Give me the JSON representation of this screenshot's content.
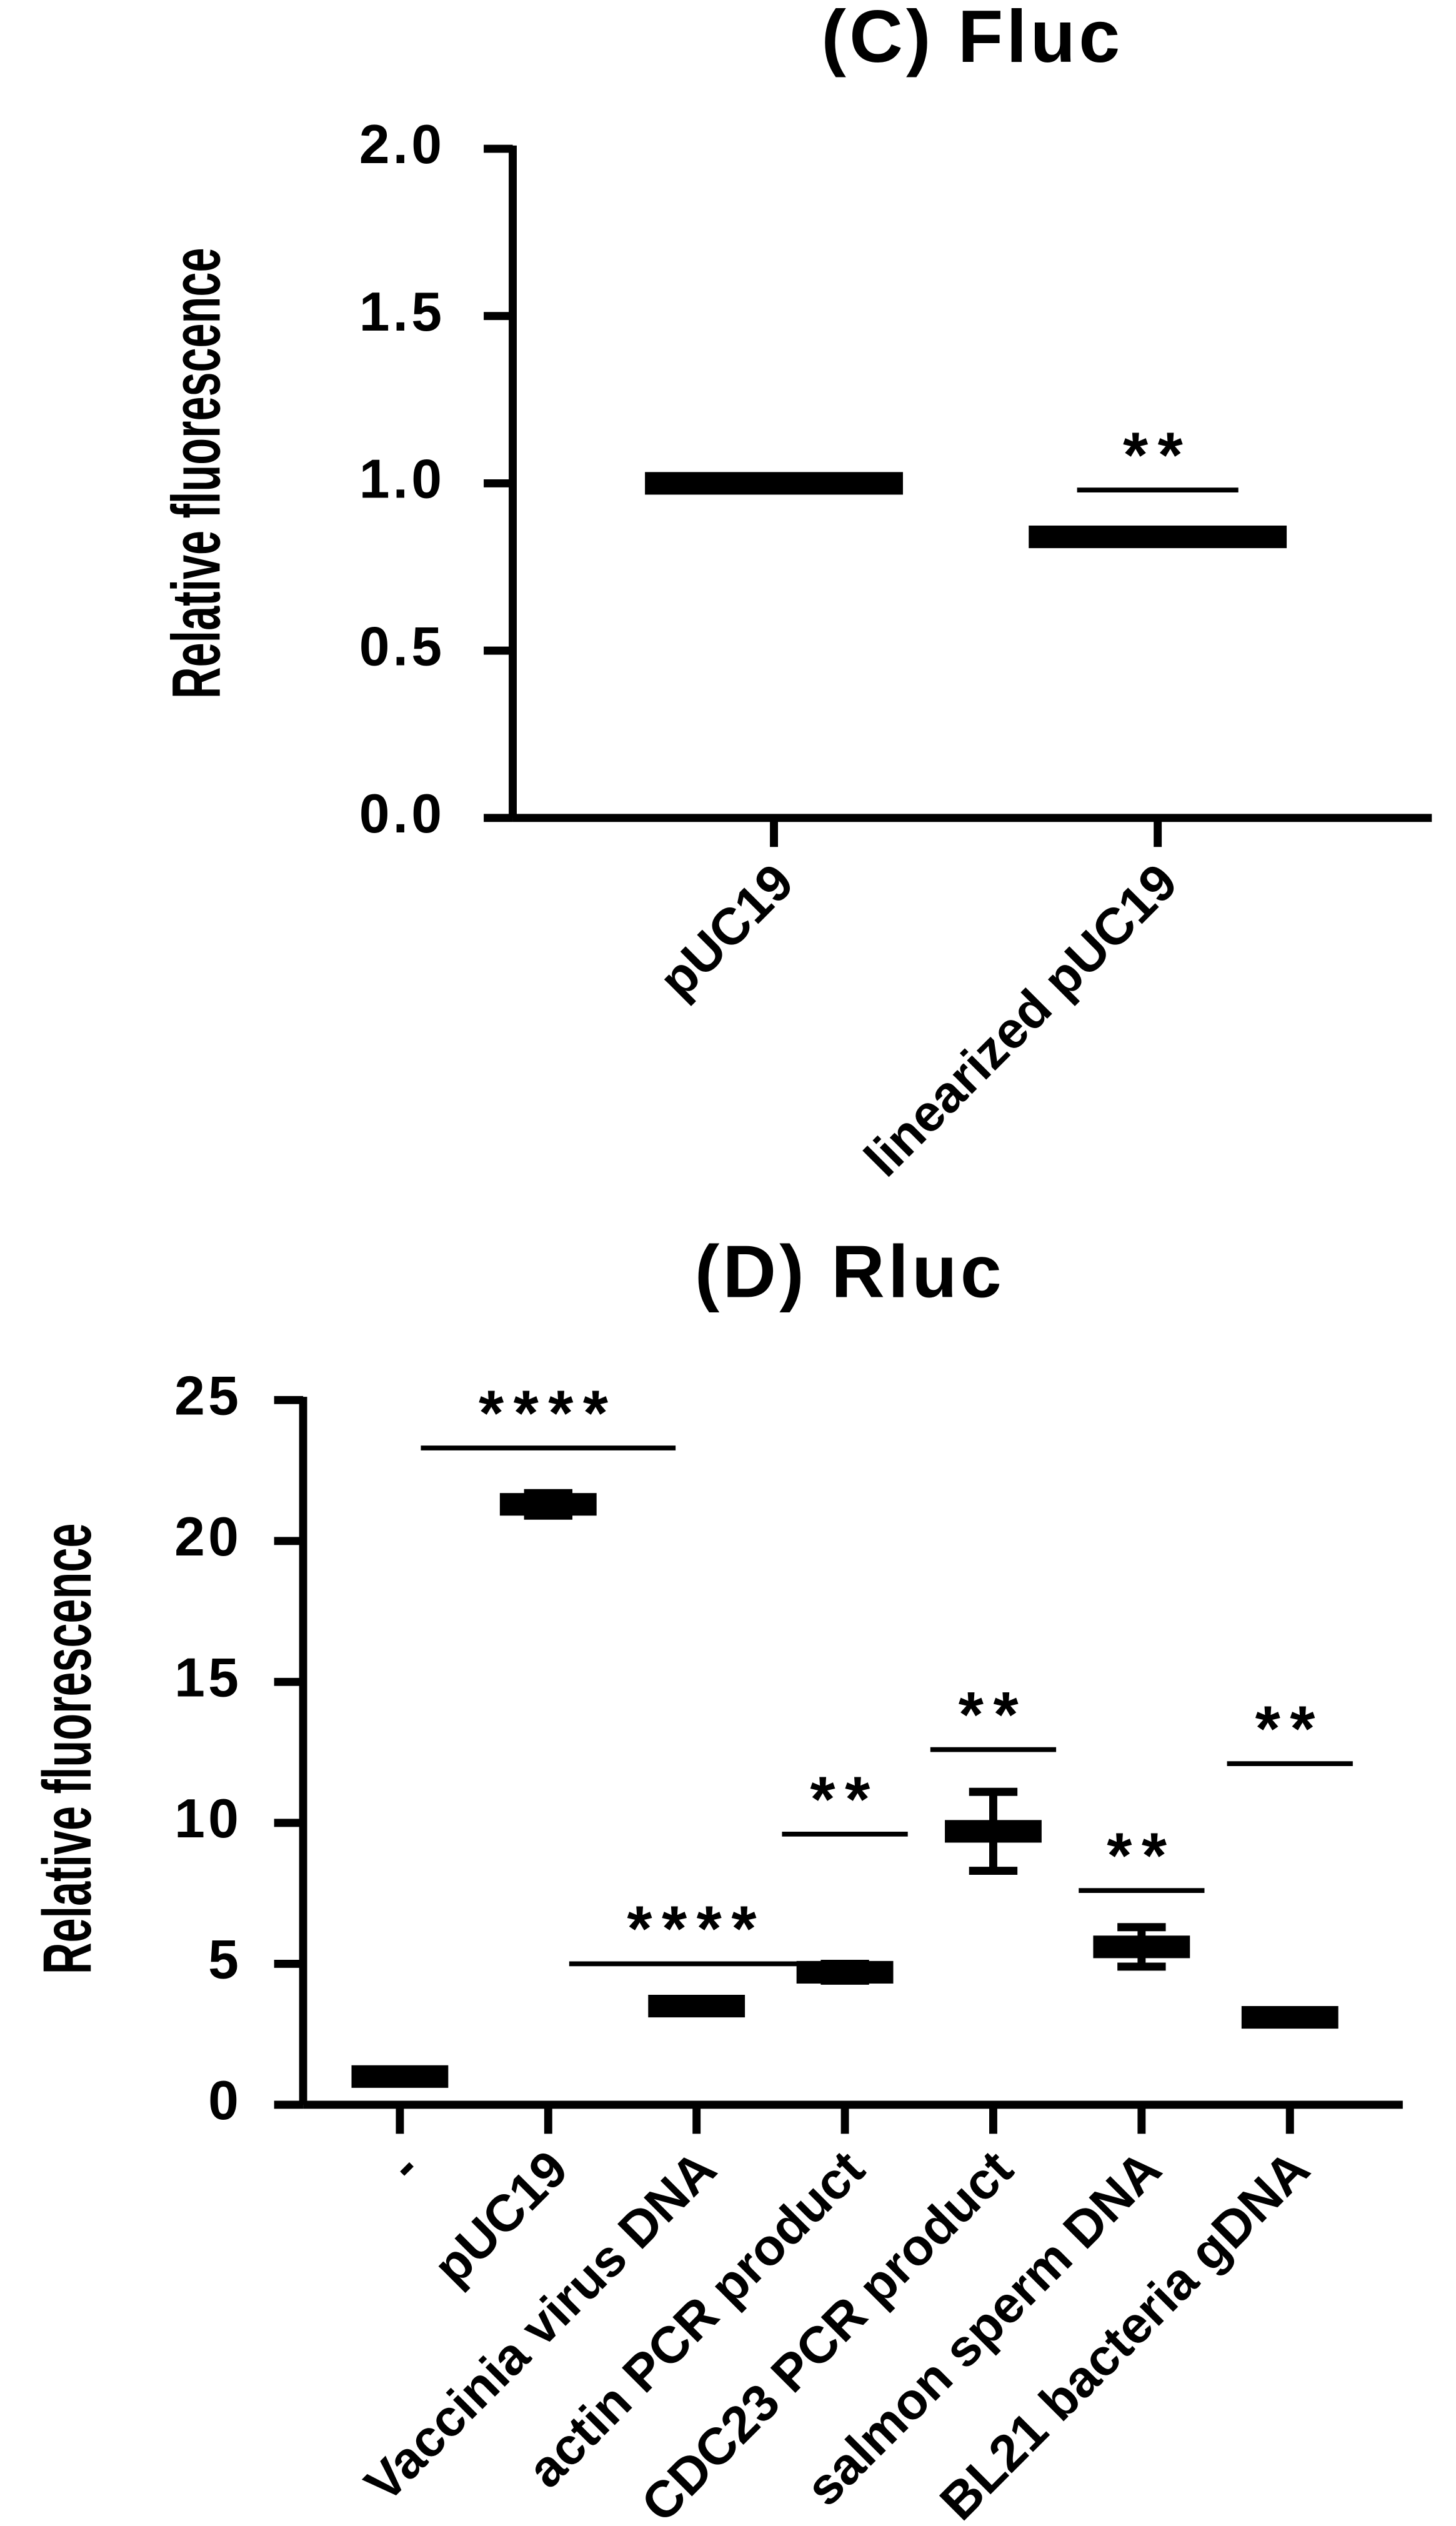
{
  "chart_data": [
    {
      "type": "mean_error",
      "title": "(C) Fluc",
      "y_label": "Relative fluorescence",
      "categories": [
        "pUC19",
        "linearized pUC19"
      ],
      "values": [
        1.0,
        0.84
      ],
      "errors": [
        0.01,
        0.02
      ],
      "color": "#000000",
      "ylim": [
        0,
        2
      ],
      "yticks": [
        {
          "value": 0,
          "label": "0.0"
        },
        {
          "value": 0.5,
          "label": "0.5"
        },
        {
          "value": 1,
          "label": "1.0"
        },
        {
          "value": 1.5,
          "label": "1.5"
        },
        {
          "value": 2,
          "label": "2.0"
        }
      ],
      "annotations": [
        null,
        {
          "text": "**",
          "y": 0.98
        }
      ]
    },
    {
      "type": "mean_error",
      "title": "(D) Rluc",
      "y_label": "Relative fluorescence",
      "categories": [
        "-",
        "pUC19",
        "Vaccinia virus DNA",
        "actin PCR product",
        "CDC23 PCR product",
        "salmon sperm DNA",
        "BL21 bacteria gDNA"
      ],
      "values": [
        1.0,
        21.3,
        3.5,
        4.7,
        9.7,
        5.6,
        3.1
      ],
      "errors": [
        0.05,
        0.4,
        0.1,
        0.3,
        1.4,
        0.7,
        0.1
      ],
      "color": "#000000",
      "ylim": [
        0,
        25
      ],
      "yticks": [
        0,
        5,
        10,
        15,
        20,
        25
      ],
      "annotations": [
        null,
        {
          "text": "****",
          "y": 23.3
        },
        {
          "text": "****",
          "y": 5.0
        },
        {
          "text": "**",
          "y": 9.6
        },
        {
          "text": "**",
          "y": 12.6
        },
        {
          "text": "**",
          "y": 7.6
        },
        {
          "text": "**",
          "y": 12.1
        }
      ]
    }
  ]
}
